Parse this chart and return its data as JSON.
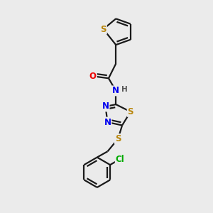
{
  "background_color": "#ebebeb",
  "bond_color": "#1a1a1a",
  "atom_colors": {
    "S": "#b8860b",
    "N": "#0000ee",
    "O": "#ee0000",
    "Cl": "#00aa00",
    "C": "#1a1a1a",
    "H": "#555555"
  },
  "bond_width": 1.6,
  "font_size_atom": 8.5,
  "fig_width": 3.0,
  "fig_height": 3.0,
  "dpi": 100
}
